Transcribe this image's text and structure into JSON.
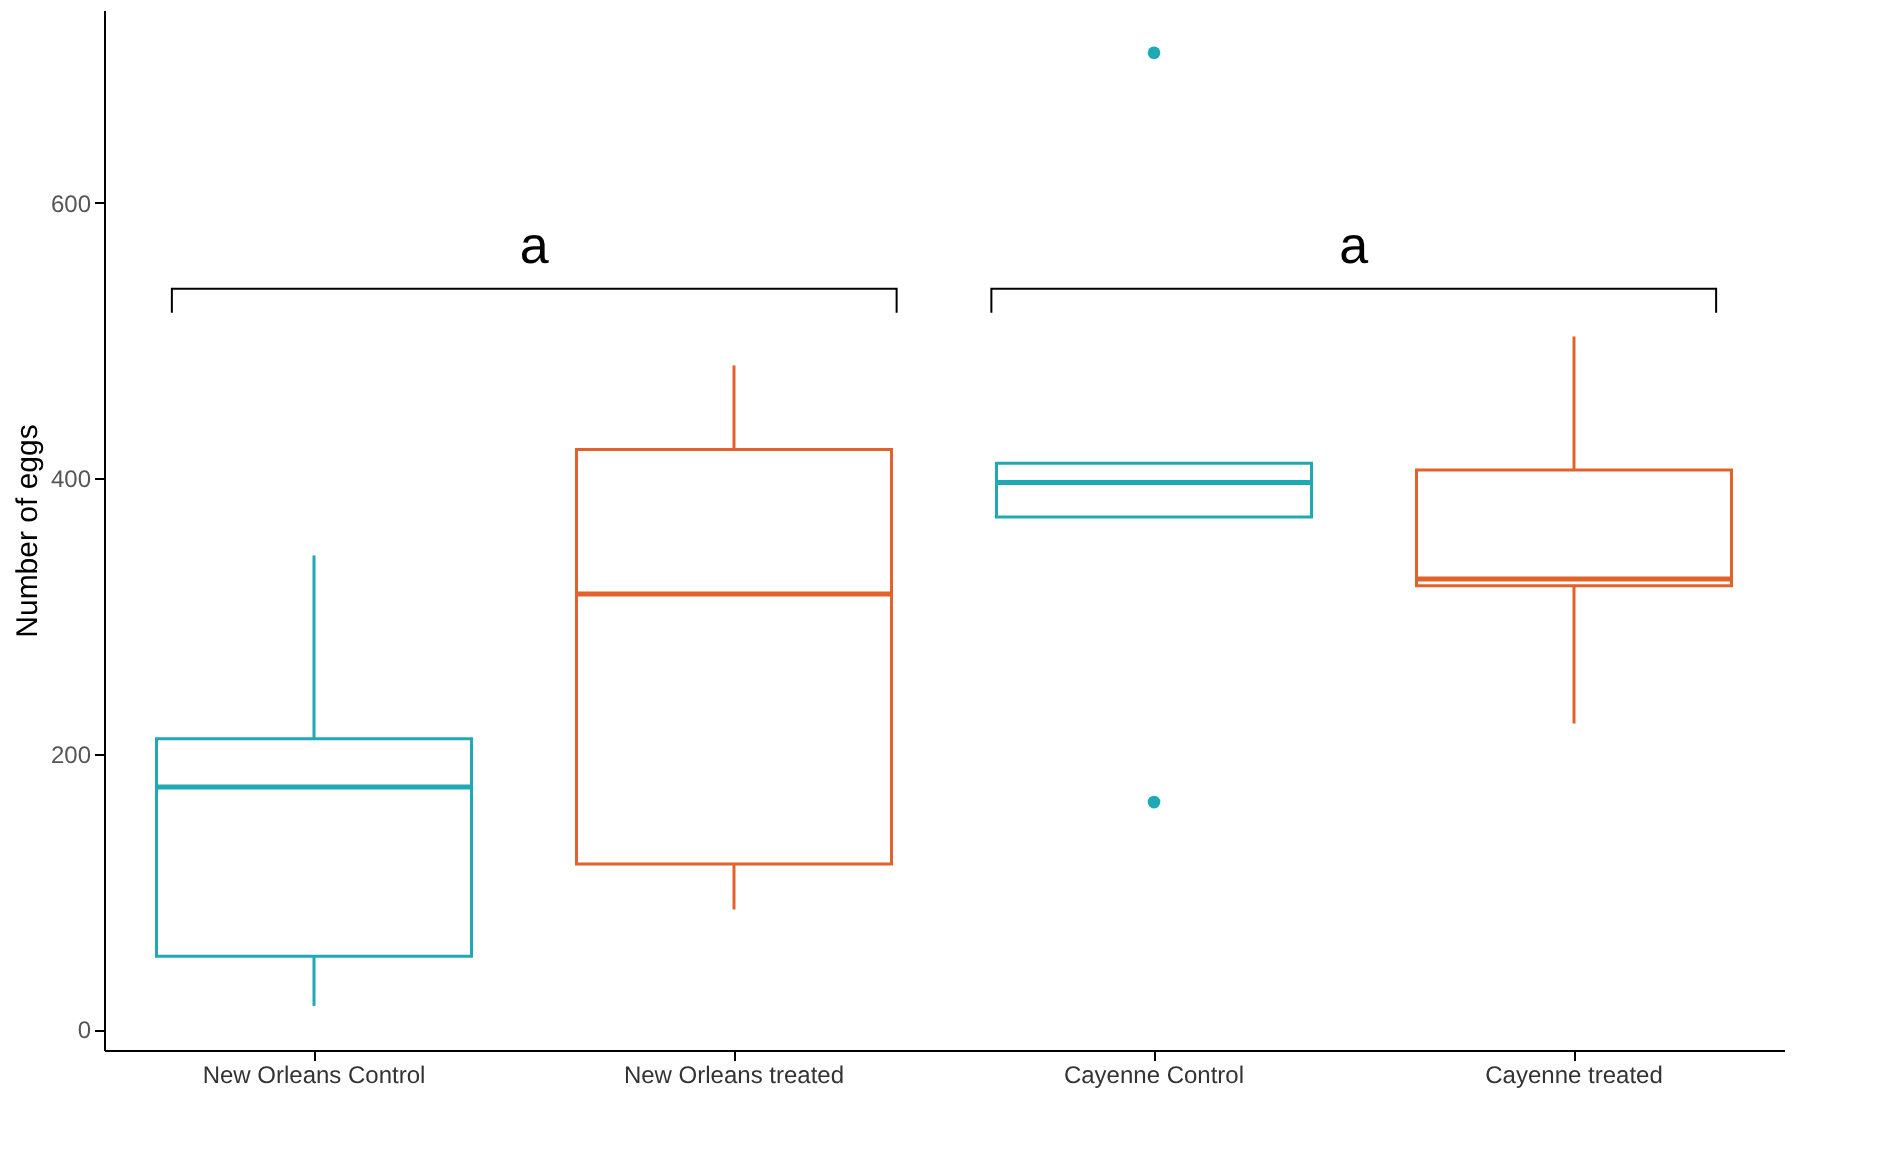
{
  "chart_data": {
    "type": "box",
    "ylabel": "Number of eggs",
    "categories": [
      "New Orleans Control",
      "New Orleans treated",
      "Cayenne Control",
      "Cayenne treated"
    ],
    "boxes": [
      {
        "low": 17,
        "q1": 53,
        "median": 176,
        "q3": 211,
        "high": 344
      },
      {
        "low": 87,
        "q1": 120,
        "median": 316,
        "q3": 421,
        "high": 482
      },
      {
        "low": 372,
        "q1": 372,
        "median": 397,
        "q3": 411,
        "high": 411,
        "outliers": [
          709,
          165
        ]
      },
      {
        "low": 222,
        "q1": 322,
        "median": 327,
        "q3": 406,
        "high": 503
      }
    ],
    "colors": [
      "#1fa9b5",
      "#e2622b",
      "#1fa9b5",
      "#e2622b"
    ],
    "ylim": [
      -15,
      740
    ],
    "yticks": [
      0,
      200,
      400,
      600
    ],
    "grid": false,
    "annotations": [
      "a",
      "a"
    ]
  }
}
